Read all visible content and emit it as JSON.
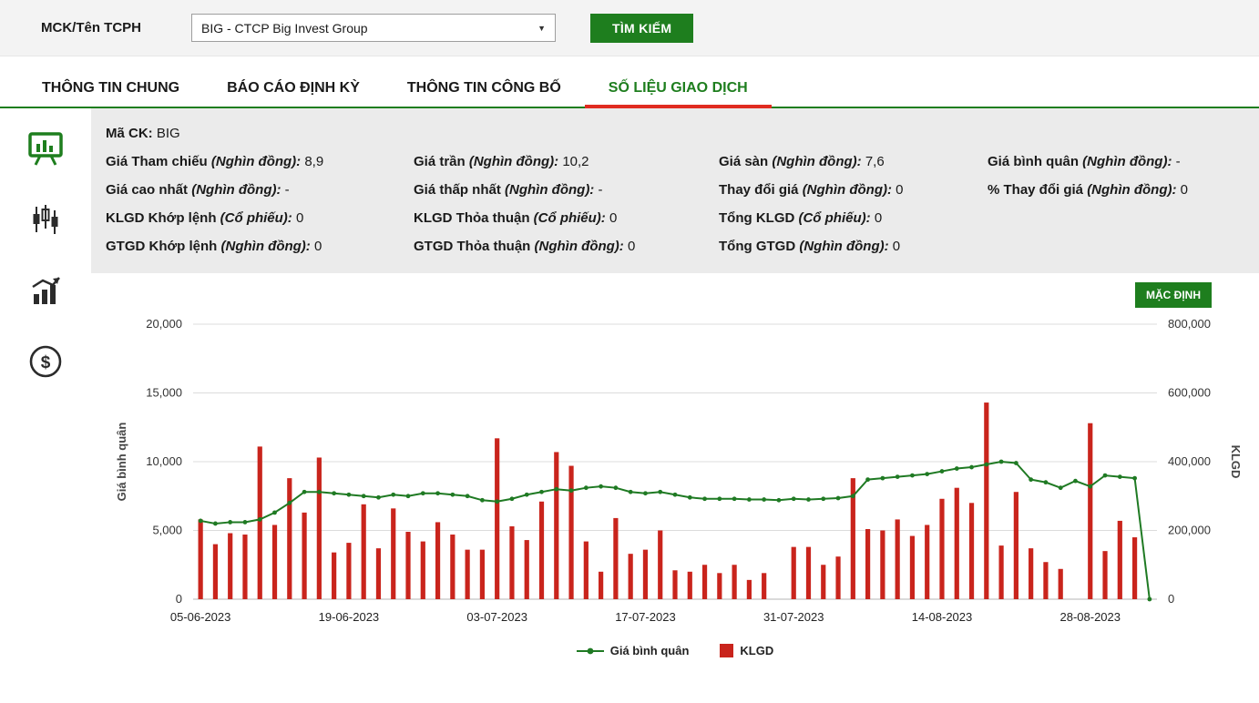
{
  "topbar": {
    "label": "MCK/Tên TCPH",
    "select_value": "BIG - CTCP Big Invest Group",
    "search_label": "TÌM KIẾM"
  },
  "tabs": [
    {
      "name": "tab-thong-tin-chung",
      "label": "THÔNG TIN CHUNG",
      "active": false
    },
    {
      "name": "tab-bao-cao-dinh-ky",
      "label": "BÁO CÁO ĐỊNH KỲ",
      "active": false
    },
    {
      "name": "tab-thong-tin-cong-bo",
      "label": "THÔNG TIN CÔNG BỐ",
      "active": false
    },
    {
      "name": "tab-so-lieu-giao-dich",
      "label": "SỐ LIỆU GIAO DỊCH",
      "active": true
    }
  ],
  "info": {
    "code_label": "Mã CK:",
    "code_value": "BIG",
    "rows": [
      [
        {
          "label": "Giá Tham chiếu",
          "unit": "(Nghìn đồng):",
          "value": "8,9"
        },
        {
          "label": "Giá trần",
          "unit": "(Nghìn đồng):",
          "value": "10,2"
        },
        {
          "label": "Giá sàn",
          "unit": "(Nghìn đồng):",
          "value": "7,6"
        },
        {
          "label": "Giá bình quân",
          "unit": "(Nghìn đồng):",
          "value": "-"
        }
      ],
      [
        {
          "label": "Giá cao nhất",
          "unit": "(Nghìn đồng):",
          "value": "-"
        },
        {
          "label": "Giá thấp nhất",
          "unit": "(Nghìn đồng):",
          "value": "-"
        },
        {
          "label": "Thay đổi giá",
          "unit": "(Nghìn đồng):",
          "value": "0"
        },
        {
          "label": "% Thay đổi giá",
          "unit": "(Nghìn đồng):",
          "value": "0"
        }
      ],
      [
        {
          "label": "KLGD Khớp lệnh",
          "unit": "(Cổ phiếu):",
          "value": "0"
        },
        {
          "label": "KLGD Thỏa thuận",
          "unit": "(Cổ phiếu):",
          "value": "0"
        },
        {
          "label": "Tổng KLGD",
          "unit": "(Cổ phiếu):",
          "value": "0"
        },
        null
      ],
      [
        {
          "label": "GTGD Khớp lệnh",
          "unit": "(Nghìn đồng):",
          "value": "0"
        },
        {
          "label": "GTGD Thỏa thuận",
          "unit": "(Nghìn đồng):",
          "value": "0"
        },
        {
          "label": "Tổng GTGD",
          "unit": "(Nghìn đồng):",
          "value": "0"
        },
        null
      ]
    ]
  },
  "chart": {
    "default_button": "MẶC ĐỊNH"
  },
  "colors": {
    "accent_green": "#1e7e1e",
    "line_green": "#1f7a23",
    "bar_red": "#c9241c",
    "tab_underline_red": "#e02b20",
    "panel_bg": "#ebebeb",
    "grid": "#dcdcdc"
  },
  "chart_data": {
    "type": "bar",
    "subtype": "combo-bar-line-dual-axis",
    "title": "",
    "grid": true,
    "legend_position": "bottom",
    "n_points": 65,
    "x_tick_indices": [
      0,
      10,
      20,
      30,
      40,
      50,
      60
    ],
    "x_tick_labels": [
      "05-06-2023",
      "19-06-2023",
      "03-07-2023",
      "17-07-2023",
      "31-07-2023",
      "14-08-2023",
      "28-08-2023"
    ],
    "left_axis": {
      "label": "Giá bình quân",
      "max": 20000,
      "ticks": [
        0,
        5000,
        10000,
        15000,
        20000
      ],
      "tick_labels": [
        "0",
        "5,000",
        "10,000",
        "15,000",
        "20,000"
      ]
    },
    "right_axis": {
      "label": "KLGD",
      "max": 800000,
      "ticks": [
        0,
        200000,
        400000,
        600000,
        800000
      ],
      "tick_labels": [
        "0",
        "200,000",
        "400,000",
        "600,000",
        "800,000"
      ]
    },
    "series": [
      {
        "name": "Giá bình quân",
        "type": "line",
        "axis": "left",
        "color": "#1f7a23",
        "values": [
          5700,
          5500,
          5600,
          5600,
          5800,
          6300,
          7000,
          7800,
          7800,
          7700,
          7600,
          7500,
          7400,
          7600,
          7500,
          7700,
          7700,
          7600,
          7500,
          7200,
          7100,
          7300,
          7600,
          7800,
          8000,
          7900,
          8100,
          8200,
          8100,
          7800,
          7700,
          7800,
          7600,
          7400,
          7300,
          7300,
          7300,
          7250,
          7250,
          7200,
          7300,
          7250,
          7300,
          7350,
          7500,
          8700,
          8800,
          8900,
          9000,
          9100,
          9300,
          9500,
          9600,
          9800,
          10000,
          9900,
          8700,
          8500,
          8100,
          8600,
          8200,
          9000,
          8900,
          8800,
          0
        ]
      },
      {
        "name": "KLGD",
        "type": "bar",
        "axis": "right",
        "color": "#c9241c",
        "values": [
          232000,
          160000,
          192000,
          188000,
          444000,
          216000,
          352000,
          252000,
          412000,
          136000,
          164000,
          276000,
          148000,
          264000,
          196000,
          168000,
          224000,
          188000,
          144000,
          144000,
          468000,
          212000,
          172000,
          284000,
          428000,
          388000,
          168000,
          80000,
          236000,
          132000,
          144000,
          200000,
          84000,
          80000,
          100000,
          76000,
          100000,
          56000,
          76000,
          0,
          152000,
          152000,
          100000,
          124000,
          352000,
          204000,
          200000,
          232000,
          184000,
          216000,
          292000,
          324000,
          280000,
          572000,
          156000,
          312000,
          148000,
          108000,
          88000,
          0,
          512000,
          140000,
          228000,
          180000,
          0
        ]
      }
    ]
  }
}
